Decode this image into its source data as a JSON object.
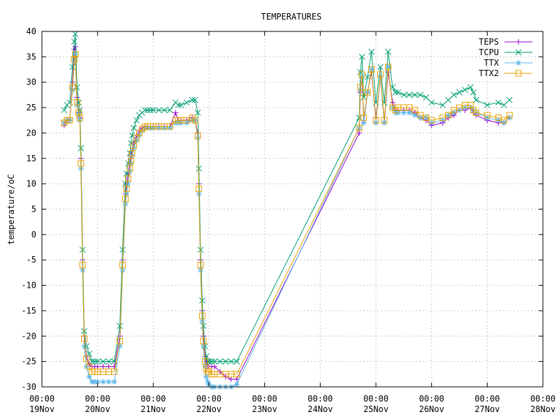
{
  "chart_data": {
    "type": "line",
    "title": "TEMPERATURES",
    "xlabel": "",
    "ylabel": "temperature/oC",
    "xlim": [
      "2000-11-19 00:00",
      "2000-11-28 00:00"
    ],
    "ylim": [
      -30,
      40
    ],
    "y_ticks": [
      -30,
      -25,
      -20,
      -15,
      -10,
      -5,
      0,
      5,
      10,
      15,
      20,
      25,
      30,
      35,
      40
    ],
    "x_ticks": [
      {
        "time": "00:00",
        "date": "19Nov"
      },
      {
        "time": "00:00",
        "date": "20Nov"
      },
      {
        "time": "00:00",
        "date": "21Nov"
      },
      {
        "time": "00:00",
        "date": "22Nov"
      },
      {
        "time": "00:00",
        "date": "23Nov"
      },
      {
        "time": "00:00",
        "date": "24Nov"
      },
      {
        "time": "00:00",
        "date": "25Nov"
      },
      {
        "time": "00:00",
        "date": "26Nov"
      },
      {
        "time": "00:00",
        "date": "27Nov"
      },
      {
        "time": "00:00",
        "date": "28Nov"
      }
    ],
    "grid": true,
    "legend_position": "top-right",
    "x_unit": "days since 19Nov 00:00",
    "x": [
      0.4,
      0.45,
      0.5,
      0.55,
      0.58,
      0.6,
      0.63,
      0.66,
      0.68,
      0.7,
      0.73,
      0.76,
      0.8,
      0.85,
      0.9,
      0.95,
      1.0,
      1.1,
      1.2,
      1.3,
      1.4,
      1.45,
      1.5,
      1.52,
      1.55,
      1.58,
      1.6,
      1.62,
      1.65,
      1.7,
      1.75,
      1.8,
      1.85,
      1.9,
      1.95,
      2.0,
      2.1,
      2.2,
      2.3,
      2.4,
      2.45,
      2.5,
      2.6,
      2.7,
      2.75,
      2.8,
      2.82,
      2.85,
      2.88,
      2.9,
      2.93,
      2.95,
      2.98,
      3.0,
      3.05,
      3.1,
      3.2,
      3.3,
      3.4,
      3.5,
      5.7,
      5.72,
      5.75,
      5.78,
      5.85,
      5.92,
      6.0,
      6.08,
      6.15,
      6.22,
      6.3,
      6.35,
      6.4,
      6.5,
      6.6,
      6.7,
      6.8,
      6.9,
      7.0,
      7.2,
      7.3,
      7.4,
      7.5,
      7.6,
      7.7,
      7.75,
      7.8,
      8.0,
      8.2,
      8.3,
      8.4
    ],
    "series": [
      {
        "name": "TEPS",
        "color": "#9400d3",
        "values": [
          21.5,
          22.5,
          22.5,
          30,
          36.5,
          37,
          27,
          24,
          23,
          15,
          -5,
          -20,
          -24,
          -25.5,
          -26,
          -26,
          -26,
          -26,
          -26,
          -26,
          -20,
          -5,
          8,
          10,
          12,
          14,
          15.5,
          16.5,
          18,
          19.5,
          20.5,
          21,
          21.2,
          21.3,
          21.3,
          21.3,
          21.3,
          21.3,
          21.3,
          24,
          22.5,
          22.5,
          22.5,
          23,
          22.5,
          20,
          10,
          -5,
          -15,
          -20,
          -24,
          -25,
          -26,
          -26,
          -26,
          -26,
          -27,
          -28,
          -28.5,
          -28.5,
          20,
          28,
          31,
          22,
          28,
          32,
          23,
          31,
          22,
          32,
          26,
          24.5,
          24.5,
          24.5,
          24.5,
          24,
          23,
          22.5,
          21.5,
          22,
          23,
          23.5,
          24.5,
          24.5,
          25,
          24,
          23.5,
          22.5,
          22,
          22,
          23
        ]
      },
      {
        "name": "TCPU",
        "color": "#009e73",
        "values": [
          24.5,
          25.5,
          26,
          33,
          38,
          39.5,
          29,
          26,
          24.5,
          17,
          -3,
          -19,
          -22,
          -23.5,
          -25,
          -25,
          -25,
          -25,
          -25,
          -25,
          -18,
          -3,
          10,
          12,
          14,
          16,
          18,
          19.5,
          21,
          22.5,
          23.5,
          24,
          24.5,
          24.5,
          24.5,
          24.5,
          24.5,
          24.5,
          24.5,
          26,
          25.5,
          25.5,
          26,
          26.5,
          26.5,
          24,
          13,
          -3,
          -13,
          -18,
          -22,
          -24,
          -25,
          -25,
          -25,
          -25,
          -25,
          -25,
          -25,
          -25,
          23,
          32,
          35,
          27,
          31,
          36,
          26,
          33,
          26,
          36,
          29,
          28,
          28,
          27.5,
          27.5,
          27.5,
          27.5,
          27,
          26,
          25.5,
          26.5,
          27.5,
          28,
          28.5,
          29,
          28,
          26.5,
          25.5,
          26,
          25.5,
          26.5
        ]
      },
      {
        "name": "TTX",
        "color": "#56b4e9",
        "values": [
          22,
          22.5,
          22.5,
          28.5,
          34,
          35.5,
          25.5,
          23.5,
          22.5,
          13,
          -7,
          -22,
          -26,
          -28,
          -29,
          -29,
          -29,
          -29,
          -29,
          -29,
          -22,
          -7,
          6,
          8,
          10,
          12.5,
          14,
          15.5,
          17,
          18.5,
          19.5,
          20.5,
          21,
          21,
          21,
          21,
          21,
          21,
          21,
          22,
          22,
          22,
          22,
          22.5,
          22.5,
          19,
          8,
          -7,
          -17,
          -22,
          -26,
          -28,
          -29,
          -29.5,
          -30,
          -30,
          -30,
          -30,
          -30,
          -29.5,
          21,
          28.5,
          31,
          22,
          28,
          32.5,
          22,
          31,
          22,
          33,
          25,
          24,
          24,
          24,
          24,
          23.5,
          23,
          23,
          22,
          22.5,
          23.5,
          24,
          24.5,
          25,
          25,
          24.5,
          24,
          23,
          22.5,
          22,
          23
        ]
      },
      {
        "name": "TTX2",
        "color": "#e69f00",
        "values": [
          22,
          22.5,
          22.5,
          29,
          34.5,
          35.5,
          26,
          24,
          23,
          14,
          -6,
          -20.5,
          -24.5,
          -26,
          -27,
          -27,
          -27,
          -27,
          -27,
          -27,
          -21,
          -6,
          7,
          9,
          11,
          13,
          14.5,
          16,
          17.5,
          19,
          20,
          20.8,
          21.2,
          21.3,
          21.3,
          21.3,
          21.3,
          21.3,
          21.3,
          22.5,
          22.5,
          22.5,
          22.5,
          23,
          22.5,
          19.5,
          9,
          -6,
          -16,
          -21,
          -25,
          -26.5,
          -27,
          -27,
          -27.5,
          -27.5,
          -27.5,
          -27.5,
          -27.5,
          -27.5,
          21,
          29,
          31.5,
          23,
          28,
          32.5,
          22.5,
          31.5,
          22.5,
          33,
          25,
          24.5,
          25,
          25,
          25,
          24.5,
          23.5,
          23,
          22.5,
          23,
          23.5,
          24.5,
          25,
          25.5,
          25.5,
          24.5,
          24,
          23.5,
          23,
          22.5,
          23.5
        ]
      }
    ]
  }
}
